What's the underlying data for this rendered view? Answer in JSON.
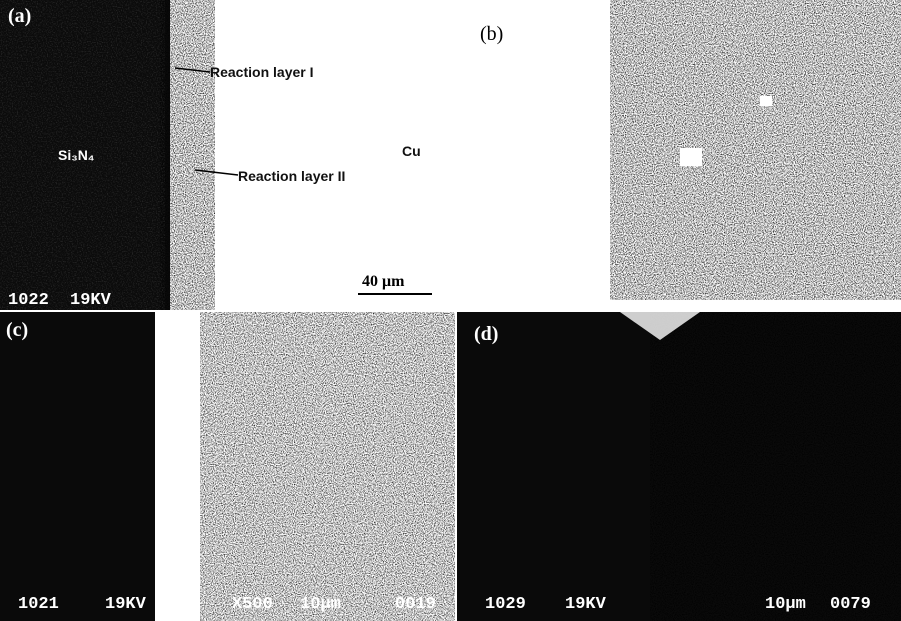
{
  "panels": [
    {
      "label": "(a)",
      "annotations": [
        "Reaction layer I",
        "Reaction layer II",
        "Si₃N₄",
        "Cu"
      ],
      "scale_bar": "40 μm",
      "footer": [
        "1022",
        "19KV"
      ]
    },
    {
      "label": "(b)"
    },
    {
      "label": "(c)",
      "footer": [
        "1021",
        "19KV",
        "X500",
        "10μm",
        "0019"
      ]
    },
    {
      "label": "(d)",
      "footer": [
        "1029",
        "19KV",
        "10μm",
        "0079"
      ]
    }
  ]
}
